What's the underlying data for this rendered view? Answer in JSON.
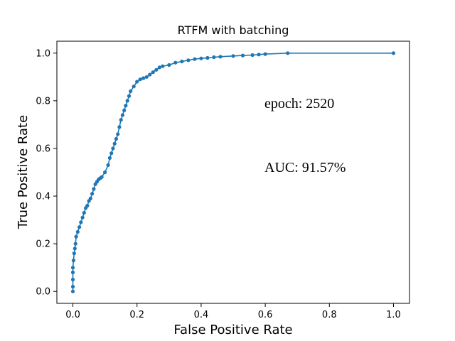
{
  "chart_data": {
    "type": "line",
    "title": "RTFM with batching",
    "xlabel": "False Positive Rate",
    "ylabel": "True Positive Rate",
    "xlim": [
      -0.05,
      1.05
    ],
    "ylim": [
      -0.05,
      1.05
    ],
    "xticks": [
      "0.0",
      "0.2",
      "0.4",
      "0.6",
      "0.8",
      "1.0"
    ],
    "yticks": [
      "0.0",
      "0.2",
      "0.4",
      "0.6",
      "0.8",
      "1.0"
    ],
    "grid": false,
    "marker": "circle",
    "line_color": "#1f77b4",
    "annotations": [
      "epoch: 2520",
      "AUC: 91.57%"
    ],
    "series": [
      {
        "x": [
          0.0,
          0.0,
          0.0,
          0.0,
          0.0,
          0.002,
          0.004,
          0.006,
          0.008,
          0.01,
          0.015,
          0.02,
          0.025,
          0.03,
          0.035,
          0.04,
          0.045,
          0.05,
          0.055,
          0.06,
          0.065,
          0.07,
          0.075,
          0.08,
          0.085,
          0.09,
          0.1,
          0.11,
          0.115,
          0.12,
          0.125,
          0.13,
          0.135,
          0.14,
          0.145,
          0.15,
          0.155,
          0.16,
          0.165,
          0.17,
          0.175,
          0.18,
          0.19,
          0.2,
          0.21,
          0.22,
          0.23,
          0.24,
          0.25,
          0.26,
          0.27,
          0.28,
          0.3,
          0.32,
          0.34,
          0.36,
          0.38,
          0.4,
          0.42,
          0.44,
          0.46,
          0.5,
          0.53,
          0.56,
          0.58,
          0.6,
          0.67,
          1.0
        ],
        "y": [
          0.0,
          0.02,
          0.05,
          0.08,
          0.1,
          0.13,
          0.16,
          0.18,
          0.2,
          0.23,
          0.25,
          0.27,
          0.29,
          0.31,
          0.33,
          0.35,
          0.36,
          0.38,
          0.39,
          0.41,
          0.43,
          0.45,
          0.46,
          0.47,
          0.475,
          0.48,
          0.5,
          0.53,
          0.56,
          0.58,
          0.6,
          0.62,
          0.64,
          0.66,
          0.69,
          0.72,
          0.74,
          0.76,
          0.78,
          0.8,
          0.82,
          0.84,
          0.86,
          0.88,
          0.89,
          0.895,
          0.9,
          0.91,
          0.92,
          0.93,
          0.94,
          0.945,
          0.95,
          0.96,
          0.965,
          0.97,
          0.975,
          0.978,
          0.98,
          0.983,
          0.985,
          0.988,
          0.99,
          0.992,
          0.994,
          0.996,
          1.0,
          1.0
        ]
      }
    ]
  }
}
